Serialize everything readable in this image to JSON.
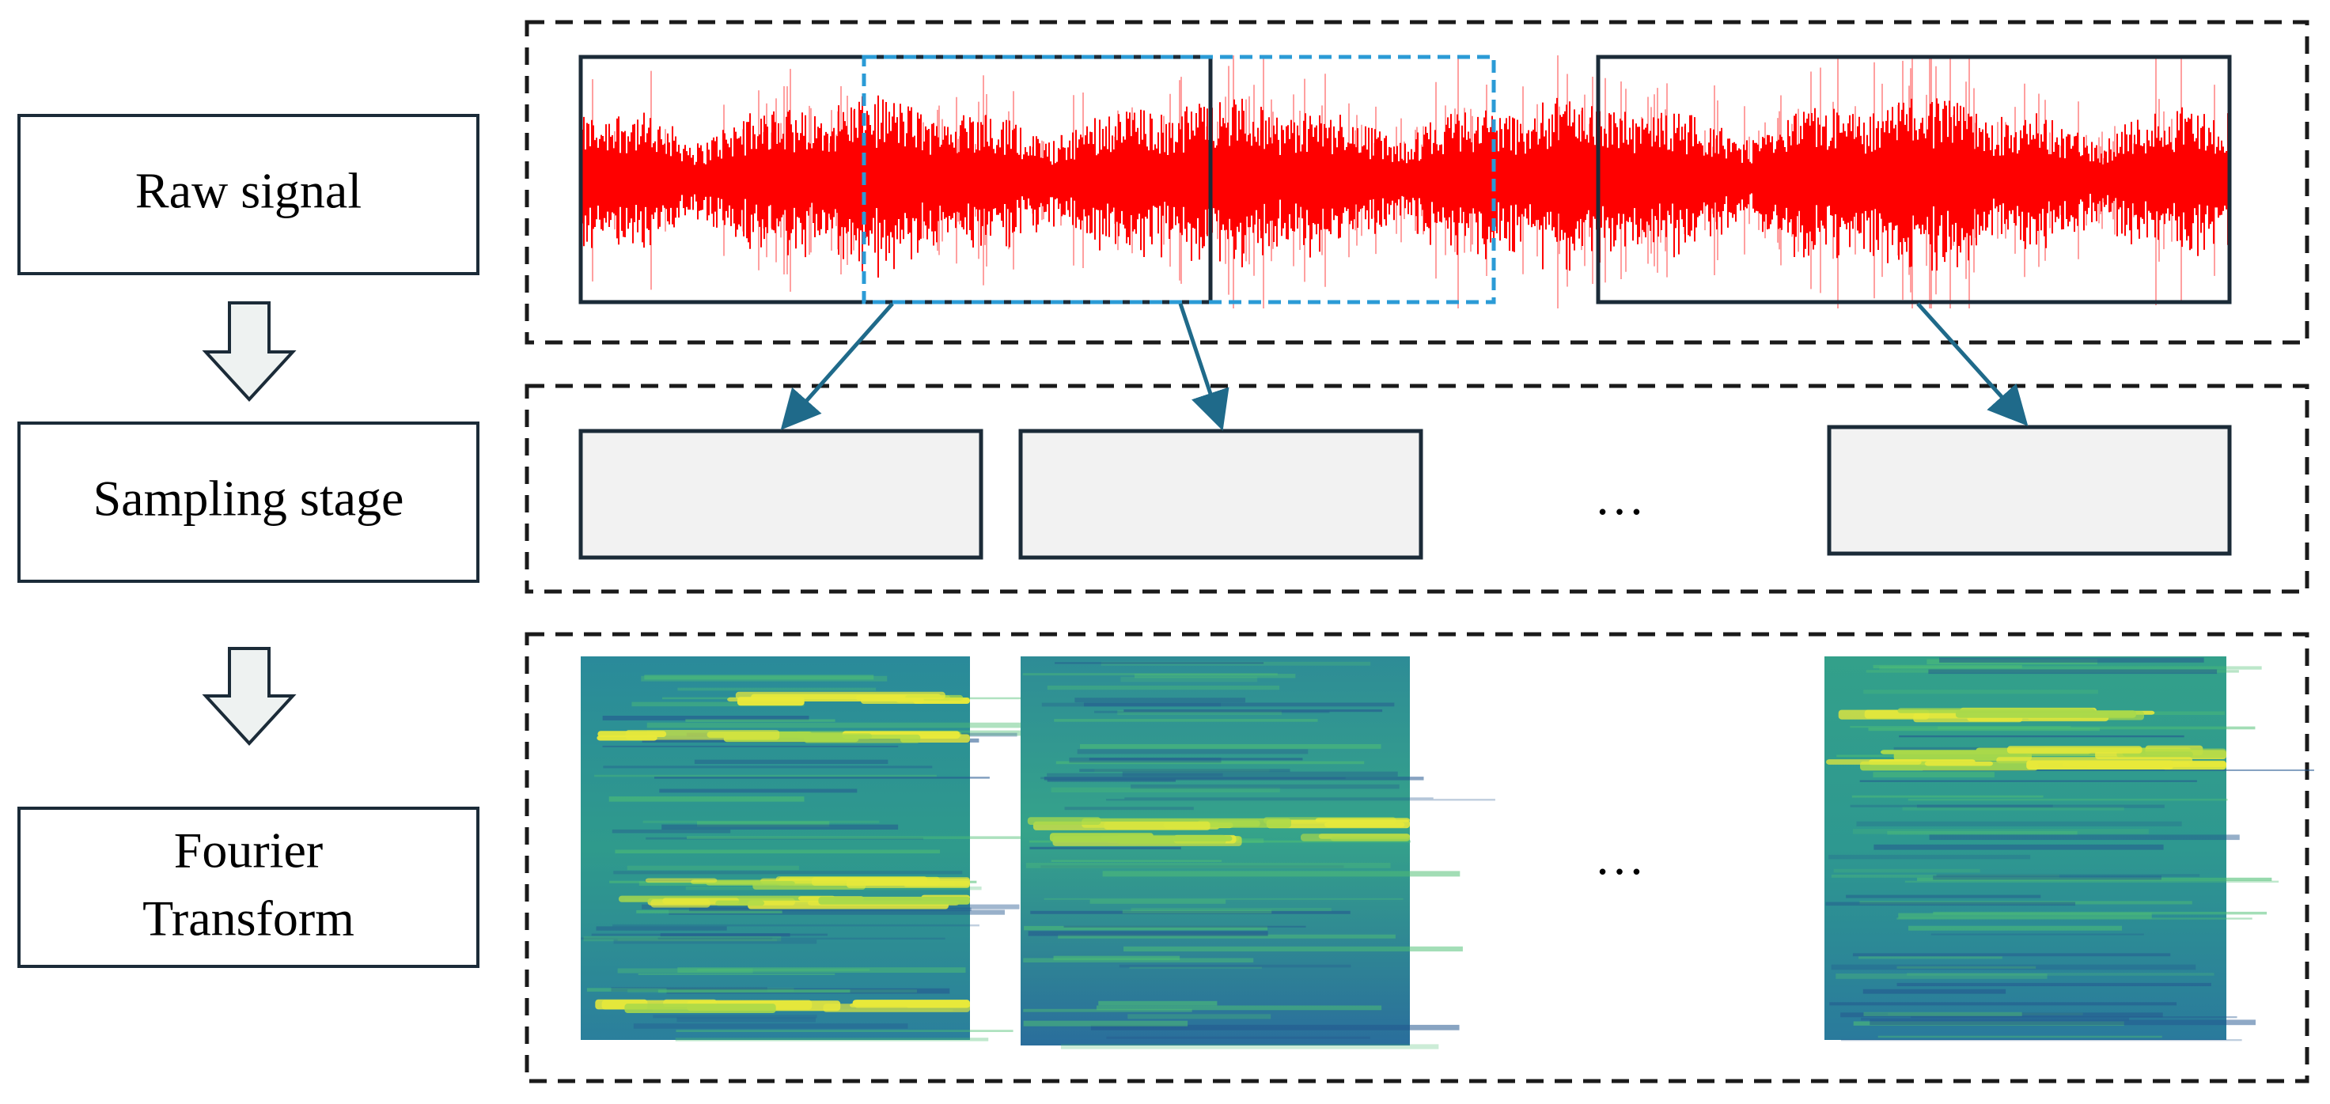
{
  "stages": [
    {
      "id": "raw",
      "lines": [
        "Raw signal"
      ]
    },
    {
      "id": "sampling",
      "lines": [
        "Sampling stage"
      ]
    },
    {
      "id": "fourier",
      "lines": [
        "Fourier",
        "Transform"
      ]
    }
  ],
  "ellipsis": "…",
  "colors": {
    "signal": "#ff0000",
    "signal_light": "#ff8080",
    "window_solid": "#1b2b38",
    "window_dashed": "#2b9bd6",
    "arrow": "#1f6a8a",
    "sample_fill": "#f2f2f2",
    "stage_arrow_fill": "#eef2f1",
    "stage_arrow_stroke": "#1b2b38"
  },
  "spectrograms": [
    {
      "bands": [
        0.1,
        0.2,
        0.58,
        0.63,
        0.9
      ]
    },
    {
      "bands": [
        0.42,
        0.46
      ]
    },
    {
      "bands": [
        0.14,
        0.24,
        0.27
      ]
    }
  ]
}
